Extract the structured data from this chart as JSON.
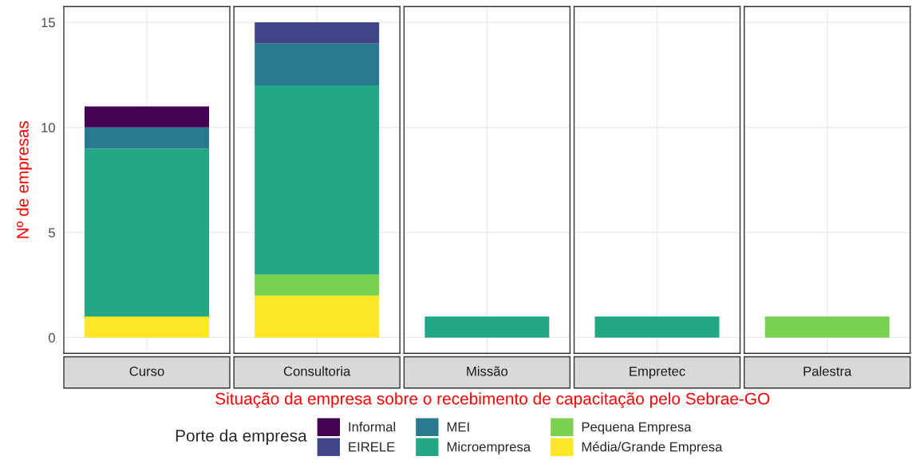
{
  "chart_data": [
    {
      "type": "bar",
      "stacked": true,
      "categories": [
        "Curso"
      ],
      "ylabel": "Nº de empresas",
      "ylim": [
        -0.75,
        15.75
      ],
      "yticks": [
        0,
        5,
        10,
        15
      ],
      "grid": true,
      "tick_labels": "y",
      "legend": "bottom",
      "legend_title": "Porte da empresa",
      "series": [
        {
          "name": "Média/Grande Empresa",
          "color": "#fde725",
          "values": [
            1
          ]
        },
        {
          "name": "Microempresa",
          "color": "#22a884",
          "values": [
            8
          ]
        },
        {
          "name": "MEI",
          "color": "#2a788e",
          "values": [
            1
          ]
        },
        {
          "name": "Informal",
          "color": "#440154",
          "values": [
            1
          ]
        }
      ]
    },
    {
      "type": "bar",
      "stacked": true,
      "categories": [
        "Consultoria"
      ],
      "ylim": [
        -0.75,
        15.75
      ],
      "yticks": [
        0,
        5,
        10,
        15
      ],
      "grid": true,
      "tick_labels": false,
      "legend": "bottom",
      "series": [
        {
          "color": "#fde725",
          "values": [
            2
          ]
        },
        {
          "name": "Pequena Empresa",
          "color": "#7ad151",
          "values": [
            1
          ]
        },
        {
          "color": "#22a884",
          "values": [
            9
          ]
        },
        {
          "color": "#2a788e",
          "values": [
            2
          ]
        },
        {
          "name": "EIRELE",
          "color": "#414487",
          "values": [
            1
          ]
        },
        {
          "color": "#440154",
          "values": [
            null
          ]
        }
      ]
    },
    {
      "type": "bar",
      "stacked": true,
      "categories": [
        "Missão"
      ],
      "xlabel": "Situação da empresa sobre o recebimento de capacitação pelo Sebrae-GO",
      "ylim": [
        -0.75,
        15.75
      ],
      "yticks": [
        0,
        5,
        10,
        15
      ],
      "grid": true,
      "tick_labels": false,
      "series": [
        {
          "color": "#22a884",
          "values": [
            1
          ]
        }
      ]
    },
    {
      "type": "bar",
      "stacked": true,
      "categories": [
        "Empretec"
      ],
      "ylim": [
        -0.75,
        15.75
      ],
      "yticks": [
        0,
        5,
        10,
        15
      ],
      "grid": true,
      "tick_labels": false,
      "series": [
        {
          "color": "#22a884",
          "values": [
            1
          ]
        }
      ]
    },
    {
      "type": "bar",
      "stacked": true,
      "categories": [
        "Palestra"
      ],
      "ylim": [
        -0.75,
        15.75
      ],
      "yticks": [
        0,
        5,
        10,
        15
      ],
      "grid": true,
      "tick_labels": false,
      "series": [
        {
          "color": "#7ad151",
          "values": [
            1
          ]
        }
      ]
    }
  ]
}
